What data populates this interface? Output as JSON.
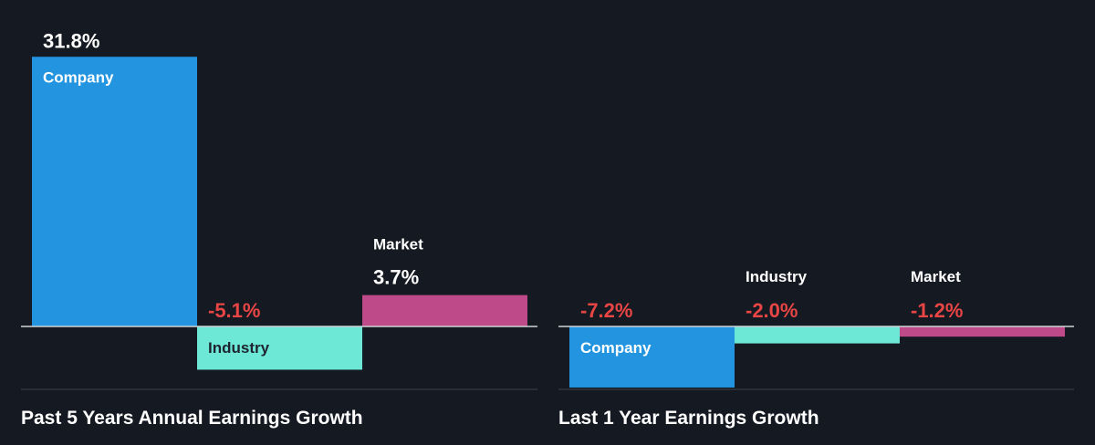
{
  "colors": {
    "background": "#151a22",
    "company": "#2394e0",
    "industry": "#6ee8d6",
    "market": "#bf4a8a",
    "positive_text": "#ffffff",
    "negative_text": "#e84545",
    "baseline": "#cfd3d8",
    "separator": "#3a404a"
  },
  "chart_data": [
    {
      "type": "bar",
      "title": "Past 5 Years Annual Earnings Growth",
      "categories": [
        "Company",
        "Industry",
        "Market"
      ],
      "values": [
        31.8,
        -5.1,
        3.7
      ],
      "value_labels": [
        "31.8%",
        "-5.1%",
        "3.7%"
      ],
      "unit": "%",
      "legend": "none",
      "grid": false
    },
    {
      "type": "bar",
      "title": "Last 1 Year Earnings Growth",
      "categories": [
        "Company",
        "Industry",
        "Market"
      ],
      "values": [
        -7.2,
        -2.0,
        -1.2
      ],
      "value_labels": [
        "-7.2%",
        "-2.0%",
        "-1.2%"
      ],
      "unit": "%",
      "legend": "none",
      "grid": false
    }
  ]
}
